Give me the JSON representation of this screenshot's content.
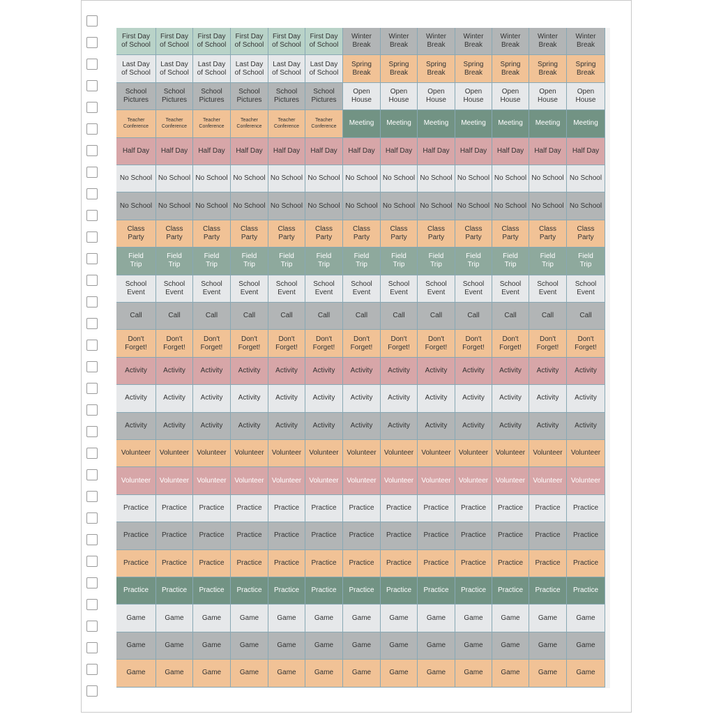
{
  "palette": {
    "mint": "#b9d3c8",
    "sage": "#8ea99d",
    "green": "#729384",
    "gray": "#b2b5b6",
    "light": "#e6e8ea",
    "peach": "#f1c296",
    "rose": "#d7a6a8",
    "grid_line": "#88a8b4"
  },
  "rows": [
    {
      "cells": [
        {
          "t": "First Day\nof School",
          "c": "mint"
        },
        {
          "t": "First Day\nof School",
          "c": "mint"
        },
        {
          "t": "First Day\nof School",
          "c": "mint"
        },
        {
          "t": "First Day\nof School",
          "c": "mint"
        },
        {
          "t": "First Day\nof School",
          "c": "mint"
        },
        {
          "t": "First Day\nof School",
          "c": "mint"
        },
        {
          "t": "Winter\nBreak",
          "c": "gray"
        },
        {
          "t": "Winter\nBreak",
          "c": "gray"
        },
        {
          "t": "Winter\nBreak",
          "c": "gray"
        },
        {
          "t": "Winter\nBreak",
          "c": "gray"
        },
        {
          "t": "Winter\nBreak",
          "c": "gray"
        },
        {
          "t": "Winter\nBreak",
          "c": "gray"
        },
        {
          "t": "Winter\nBreak",
          "c": "gray"
        }
      ]
    },
    {
      "cells": [
        {
          "t": "Last Day\nof School",
          "c": "light"
        },
        {
          "t": "Last Day\nof School",
          "c": "light"
        },
        {
          "t": "Last Day\nof School",
          "c": "light"
        },
        {
          "t": "Last Day\nof School",
          "c": "light"
        },
        {
          "t": "Last Day\nof School",
          "c": "light"
        },
        {
          "t": "Last Day\nof School",
          "c": "light"
        },
        {
          "t": "Spring\nBreak",
          "c": "peach"
        },
        {
          "t": "Spring\nBreak",
          "c": "peach"
        },
        {
          "t": "Spring\nBreak",
          "c": "peach"
        },
        {
          "t": "Spring\nBreak",
          "c": "peach"
        },
        {
          "t": "Spring\nBreak",
          "c": "peach"
        },
        {
          "t": "Spring\nBreak",
          "c": "peach"
        },
        {
          "t": "Spring\nBreak",
          "c": "peach"
        }
      ]
    },
    {
      "cells": [
        {
          "t": "School\nPictures",
          "c": "gray"
        },
        {
          "t": "School\nPictures",
          "c": "gray"
        },
        {
          "t": "School\nPictures",
          "c": "gray"
        },
        {
          "t": "School\nPictures",
          "c": "gray"
        },
        {
          "t": "School\nPictures",
          "c": "gray"
        },
        {
          "t": "School\nPictures",
          "c": "gray"
        },
        {
          "t": "Open\nHouse",
          "c": "light"
        },
        {
          "t": "Open\nHouse",
          "c": "light"
        },
        {
          "t": "Open\nHouse",
          "c": "light"
        },
        {
          "t": "Open\nHouse",
          "c": "light"
        },
        {
          "t": "Open\nHouse",
          "c": "light"
        },
        {
          "t": "Open\nHouse",
          "c": "light"
        },
        {
          "t": "Open\nHouse",
          "c": "light"
        }
      ]
    },
    {
      "cells": [
        {
          "t": "Teacher\nConference",
          "c": "peach",
          "small": true
        },
        {
          "t": "Teacher\nConference",
          "c": "peach",
          "small": true
        },
        {
          "t": "Teacher\nConference",
          "c": "peach",
          "small": true
        },
        {
          "t": "Teacher\nConference",
          "c": "peach",
          "small": true
        },
        {
          "t": "Teacher\nConference",
          "c": "peach",
          "small": true
        },
        {
          "t": "Teacher\nConference",
          "c": "peach",
          "small": true
        },
        {
          "t": "Meeting",
          "c": "green",
          "light": true
        },
        {
          "t": "Meeting",
          "c": "green",
          "light": true
        },
        {
          "t": "Meeting",
          "c": "green",
          "light": true
        },
        {
          "t": "Meeting",
          "c": "green",
          "light": true
        },
        {
          "t": "Meeting",
          "c": "green",
          "light": true
        },
        {
          "t": "Meeting",
          "c": "green",
          "light": true
        },
        {
          "t": "Meeting",
          "c": "green",
          "light": true
        }
      ]
    },
    {
      "label": "Half Day",
      "c": "rose"
    },
    {
      "label": "No School",
      "c": "light"
    },
    {
      "label": "No School",
      "c": "gray"
    },
    {
      "label": "Class\nParty",
      "c": "peach"
    },
    {
      "label": "Field\nTrip",
      "c": "sage",
      "light": true
    },
    {
      "label": "School\nEvent",
      "c": "light"
    },
    {
      "label": "Call",
      "c": "gray"
    },
    {
      "label": "Don't\nForget!",
      "c": "peach"
    },
    {
      "label": "Activity",
      "c": "rose"
    },
    {
      "label": "Activity",
      "c": "light"
    },
    {
      "label": "Activity",
      "c": "gray"
    },
    {
      "label": "Volunteer",
      "c": "peach"
    },
    {
      "label": "Volunteer",
      "c": "rose",
      "light": true
    },
    {
      "label": "Practice",
      "c": "light"
    },
    {
      "label": "Practice",
      "c": "gray"
    },
    {
      "label": "Practice",
      "c": "peach"
    },
    {
      "label": "Practice",
      "c": "green",
      "light": true
    },
    {
      "label": "Game",
      "c": "light"
    },
    {
      "label": "Game",
      "c": "gray"
    },
    {
      "label": "Game",
      "c": "peach"
    }
  ]
}
